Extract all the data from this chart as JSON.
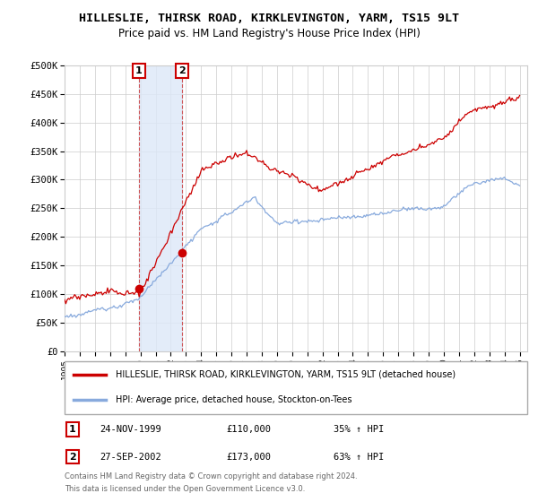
{
  "title": "HILLESLIE, THIRSK ROAD, KIRKLEVINGTON, YARM, TS15 9LT",
  "subtitle": "Price paid vs. HM Land Registry's House Price Index (HPI)",
  "ylabel_ticks": [
    "£0",
    "£50K",
    "£100K",
    "£150K",
    "£200K",
    "£250K",
    "£300K",
    "£350K",
    "£400K",
    "£450K",
    "£500K"
  ],
  "ytick_values": [
    0,
    50000,
    100000,
    150000,
    200000,
    250000,
    300000,
    350000,
    400000,
    450000,
    500000
  ],
  "ylim": [
    0,
    500000
  ],
  "xlim_start": 1995.0,
  "xlim_end": 2025.5,
  "legend_line1": "HILLESLIE, THIRSK ROAD, KIRKLEVINGTON, YARM, TS15 9LT (detached house)",
  "legend_line2": "HPI: Average price, detached house, Stockton-on-Tees",
  "line1_color": "#cc0000",
  "line2_color": "#88aadd",
  "transaction1_date": "24-NOV-1999",
  "transaction1_price": 110000,
  "transaction1_label": "1",
  "transaction1_hpi_pct": "35% ↑ HPI",
  "transaction1_x": 1999.9,
  "transaction2_date": "27-SEP-2002",
  "transaction2_price": 173000,
  "transaction2_label": "2",
  "transaction2_hpi_pct": "63% ↑ HPI",
  "transaction2_x": 2002.75,
  "footnote1": "Contains HM Land Registry data © Crown copyright and database right 2024.",
  "footnote2": "This data is licensed under the Open Government Licence v3.0.",
  "shade_color": "#dde8f8",
  "shade_alpha": 0.8,
  "background_color": "#ffffff",
  "grid_color": "#cccccc",
  "box_edge_color": "#cc0000"
}
